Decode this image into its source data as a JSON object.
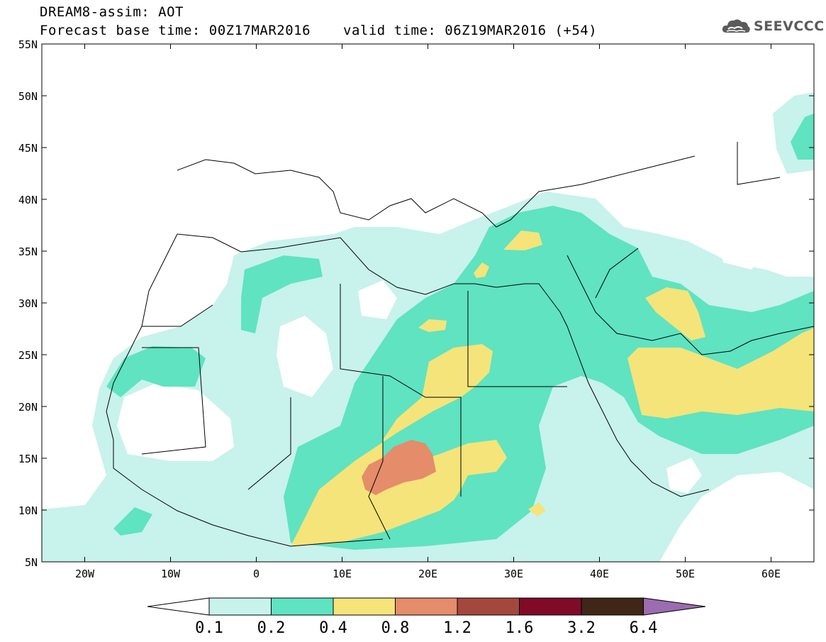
{
  "header": {
    "model_title": "DREAM8-assim: AOT",
    "base_time": "Forecast base time: 00Z17MAR2016",
    "valid_time": "valid time: 06Z19MAR2016 (+54)"
  },
  "logo": {
    "text": "SEEVCCC",
    "icon": "cloud-logo-icon",
    "color": "#5b5b5b"
  },
  "map": {
    "region": "North Africa, Europe, Middle East",
    "lon_range": [
      -25,
      65
    ],
    "lat_range": [
      5,
      55
    ],
    "lat_labels": [
      "55N",
      "50N",
      "45N",
      "40N",
      "35N",
      "30N",
      "25N",
      "20N",
      "15N",
      "10N",
      "5N"
    ],
    "lon_labels": [
      "20W",
      "10W",
      "0",
      "10E",
      "20E",
      "30E",
      "40E",
      "50E",
      "60E"
    ],
    "colors": {
      "c01": "#c8f2ec",
      "c02": "#5fe3c0",
      "c04": "#f5e47a",
      "c08": "#e58c6a",
      "c12": "#a4483e",
      "c16": "#800a28",
      "c32": "#3f2616",
      "c64": "#9b6cb0",
      "coast": "#000000"
    }
  },
  "colorbar": {
    "labels": [
      "0.1",
      "0.2",
      "0.4",
      "0.8",
      "1.2",
      "1.6",
      "3.2",
      "6.4"
    ]
  }
}
